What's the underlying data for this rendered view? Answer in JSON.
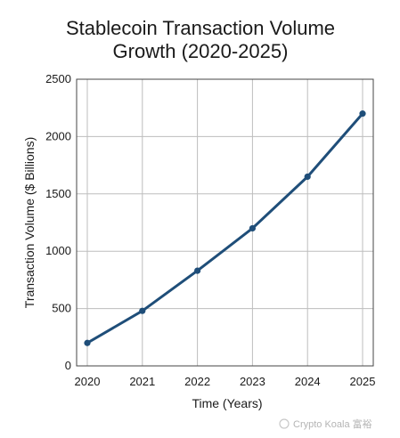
{
  "chart_data": {
    "type": "line",
    "title": "Stablecoin Transaction Volume Growth (2020-2025)",
    "title_lines": [
      "Stablecoin Transaction Volume",
      "Growth (2020-2025)"
    ],
    "xlabel": "Time (Years)",
    "ylabel": "Transaction Volume ($ Billions)",
    "x": [
      "2020",
      "2021",
      "2022",
      "2023",
      "2024",
      "2025"
    ],
    "series": [
      {
        "values": [
          200,
          480,
          830,
          1200,
          1650,
          2200
        ]
      }
    ],
    "ylim": [
      0,
      2500
    ],
    "yticks": [
      "0",
      "500",
      "1000",
      "1500",
      "2000",
      "2500"
    ],
    "grid": true,
    "line_color": "#1f4e79",
    "marker": "circle"
  },
  "watermark": "Crypto Koala 富裕"
}
